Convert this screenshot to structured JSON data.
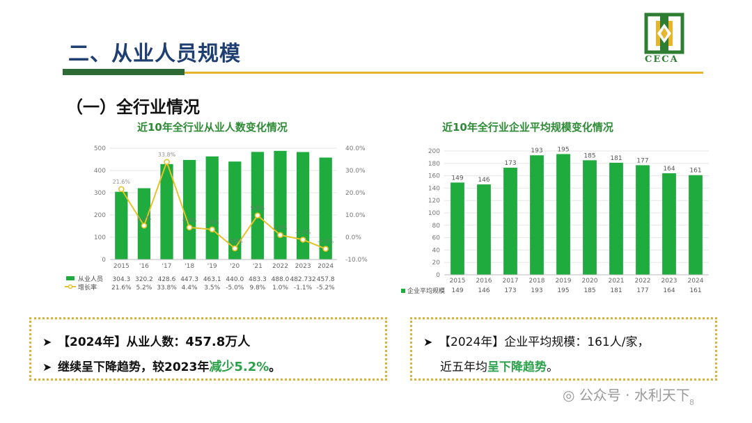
{
  "page": {
    "title": "二、从业人员规模",
    "subtitle": "（一）全行业情况",
    "logo_text": "CECA",
    "watermark": "公众号 · 水利天下",
    "page_number": "8"
  },
  "colors": {
    "bar": "#1fab3e",
    "line": "#e6c229",
    "heading": "#1f3f73",
    "accent": "#2ba24a"
  },
  "chart_data": [
    {
      "type": "bar",
      "title": "近10年全行业从业人数变化情况",
      "categories": [
        "2015",
        "'16",
        "'17",
        "'18",
        "'19",
        "'20",
        "'21",
        "2022",
        "2023",
        "2024"
      ],
      "ylim": [
        0,
        500
      ],
      "y_ticks": [
        "0",
        "100",
        "200",
        "300",
        "400",
        "500"
      ],
      "y2lim": [
        -10,
        40
      ],
      "y2_ticks": [
        "-10.0%",
        "0.0%",
        "10.0%",
        "20.0%",
        "30.0%",
        "40.0%"
      ],
      "series": [
        {
          "name": "从业人员",
          "kind": "bar",
          "values": [
            304.3,
            320.2,
            428.6,
            447.3,
            463.1,
            440.0,
            483.3,
            488.0,
            482.732,
            457.8
          ],
          "labels": [
            "304.3",
            "320.2",
            "428.6",
            "447.3",
            "463.1",
            "440.0",
            "483.3",
            "488.0",
            "482.732",
            "457.8"
          ]
        },
        {
          "name": "增长率",
          "kind": "line",
          "values": [
            21.6,
            5.2,
            33.8,
            4.4,
            3.5,
            -5.0,
            9.8,
            1.0,
            -1.1,
            -5.2
          ],
          "labels": [
            "21.6%",
            "5.2%",
            "33.8%",
            "4.4%",
            "3.5%",
            "-5.0%",
            "9.8%",
            "1.0%",
            "-1.1%",
            "-5.2%"
          ]
        }
      ]
    },
    {
      "type": "bar",
      "title": "近10年全行业企业平均规模变化情况",
      "categories": [
        "2015",
        "2016",
        "2017",
        "2018",
        "2019",
        "2020",
        "2021",
        "2022",
        "2023",
        "2024"
      ],
      "ylim": [
        0,
        200
      ],
      "y_ticks": [
        "0",
        "20",
        "40",
        "60",
        "80",
        "100",
        "120",
        "140",
        "160",
        "180",
        "200"
      ],
      "series": [
        {
          "name": "企业平均规模",
          "kind": "bar",
          "values": [
            149,
            146,
            173,
            193,
            195,
            185,
            181,
            177,
            164,
            161
          ],
          "labels": [
            "149",
            "146",
            "173",
            "193",
            "195",
            "185",
            "181",
            "177",
            "164",
            "161"
          ]
        }
      ]
    }
  ],
  "notes": {
    "left": {
      "l1_a": "【2024年】从业人数：",
      "l1_b": "457.8万人",
      "l2_a": "继续呈下降趋势，较2023年",
      "l2_b": "减少5.2%",
      "l2_c": "。"
    },
    "right": {
      "l1": "【2024年】企业平均规模：161人/家，",
      "l2_a": "近五年均",
      "l2_b": "呈下降趋势",
      "l2_c": "。"
    }
  }
}
